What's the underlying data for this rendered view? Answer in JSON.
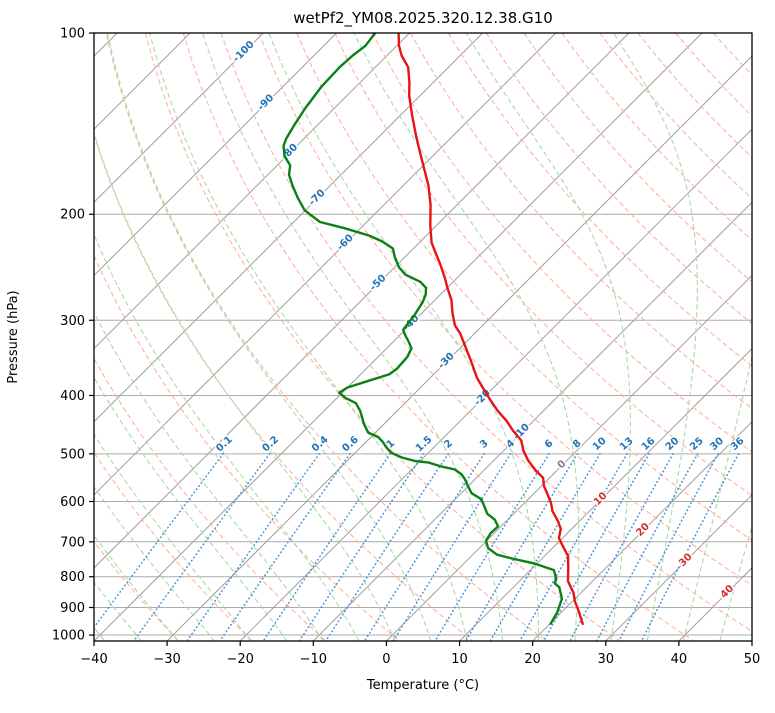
{
  "title": "wetPf2_YM08.2025.320.12.38.G10",
  "chart_data": {
    "type": "line",
    "variant": "skew-t-log-p",
    "title": "wetPf2_YM08.2025.320.12.38.G10",
    "xlabel": "Temperature (°C)",
    "ylabel": "Pressure (hPa)",
    "xlim": [
      -40,
      50
    ],
    "x_ticks": [
      -40,
      -30,
      -20,
      -10,
      0,
      10,
      20,
      30,
      40,
      50
    ],
    "p_lim": [
      100,
      1023
    ],
    "p_ticks": [
      100,
      200,
      300,
      400,
      500,
      600,
      700,
      800,
      900,
      1000
    ],
    "grid": true,
    "skew_deg": 45,
    "colors": {
      "frame": "#000000",
      "grid": "#ababab",
      "isotherm": "#9e9e9e",
      "dry_adiabat": "#ffb2a0",
      "moist_adiabat": "#abd8ab",
      "mixing_line": "#4a96d8",
      "label_blue": "#2373b5",
      "label_gray": "#7f7f7f",
      "label_red": "#d03030",
      "temperature": "#e81313",
      "dewpoint": "#0b8014"
    },
    "isotherms": {
      "t_start": -160,
      "t_end": 50,
      "step": 10,
      "labels": [
        {
          "t": -100,
          "p": 107
        },
        {
          "t": -90,
          "p": 130
        },
        {
          "t": -80,
          "p": 157
        },
        {
          "t": -70,
          "p": 187
        },
        {
          "t": -60,
          "p": 222
        },
        {
          "t": -50,
          "p": 259
        },
        {
          "t": -40,
          "p": 302
        },
        {
          "t": -30,
          "p": 349
        },
        {
          "t": -20,
          "p": 402
        },
        {
          "t": -10,
          "p": 458
        },
        {
          "t": 0,
          "p": 519
        },
        {
          "t": 10,
          "p": 592
        },
        {
          "t": 20,
          "p": 666
        },
        {
          "t": 30,
          "p": 748
        },
        {
          "t": 40,
          "p": 844
        }
      ]
    },
    "dry_adiabats": {
      "theta_start": -60,
      "theta_end": 200,
      "step": 10
    },
    "moist_adiabats": {
      "tw_start": -60,
      "tw_end": 45,
      "step": 5
    },
    "mixing_ratio": {
      "values": [
        0.1,
        0.2,
        0.4,
        0.6,
        1,
        1.5,
        2,
        3,
        4,
        6,
        8,
        10,
        13,
        16,
        20,
        25,
        30,
        36
      ],
      "labels": [
        "0.1",
        "0.2",
        "0.4",
        "0.6",
        "1",
        "1.5",
        "2",
        "3",
        "4",
        "6",
        "8",
        "10",
        "13",
        "16",
        "20",
        "25",
        "30",
        "36"
      ],
      "label_pressure": 480,
      "line_top_pressure": 500,
      "line_bottom_pressure": 1023
    },
    "series": [
      {
        "name": "temperature",
        "points": [
          [
            100,
            -81.5
          ],
          [
            105,
            -79.7
          ],
          [
            109,
            -78.0
          ],
          [
            114,
            -75.5
          ],
          [
            121,
            -73.2
          ],
          [
            127,
            -71.5
          ],
          [
            137,
            -68.4
          ],
          [
            148,
            -65.1
          ],
          [
            157,
            -62.5
          ],
          [
            166,
            -60.0
          ],
          [
            179,
            -56.6
          ],
          [
            193,
            -53.6
          ],
          [
            209,
            -50.8
          ],
          [
            223,
            -48.3
          ],
          [
            234,
            -45.9
          ],
          [
            243,
            -44.0
          ],
          [
            255,
            -41.7
          ],
          [
            266,
            -39.8
          ],
          [
            278,
            -37.7
          ],
          [
            292,
            -35.8
          ],
          [
            306,
            -33.8
          ],
          [
            316,
            -31.9
          ],
          [
            333,
            -29.3
          ],
          [
            350,
            -26.8
          ],
          [
            374,
            -23.6
          ],
          [
            388,
            -21.5
          ],
          [
            408,
            -18.6
          ],
          [
            424,
            -16.3
          ],
          [
            440,
            -13.8
          ],
          [
            458,
            -11.4
          ],
          [
            475,
            -9.0
          ],
          [
            494,
            -7.3
          ],
          [
            513,
            -5.3
          ],
          [
            533,
            -2.9
          ],
          [
            548,
            -0.9
          ],
          [
            565,
            0.3
          ],
          [
            583,
            1.9
          ],
          [
            603,
            3.6
          ],
          [
            622,
            4.9
          ],
          [
            646,
            7.0
          ],
          [
            666,
            8.5
          ],
          [
            690,
            9.5
          ],
          [
            711,
            11.1
          ],
          [
            739,
            13.2
          ],
          [
            774,
            14.9
          ],
          [
            813,
            16.6
          ],
          [
            851,
            19.0
          ],
          [
            878,
            20.3
          ],
          [
            905,
            21.8
          ],
          [
            932,
            23.2
          ],
          [
            958,
            24.5
          ]
        ]
      },
      {
        "name": "dewpoint",
        "points": [
          [
            100,
            -84.7
          ],
          [
            105,
            -84.3
          ],
          [
            109,
            -84.7
          ],
          [
            114,
            -84.9
          ],
          [
            123,
            -84.7
          ],
          [
            133,
            -84.0
          ],
          [
            142,
            -83.2
          ],
          [
            150,
            -82.4
          ],
          [
            154,
            -81.8
          ],
          [
            160,
            -80.3
          ],
          [
            166,
            -78.2
          ],
          [
            172,
            -77.1
          ],
          [
            179,
            -75.2
          ],
          [
            188,
            -72.7
          ],
          [
            197,
            -70.1
          ],
          [
            206,
            -66.4
          ],
          [
            211,
            -62.2
          ],
          [
            217,
            -57.8
          ],
          [
            222,
            -55.2
          ],
          [
            228,
            -52.8
          ],
          [
            236,
            -51.3
          ],
          [
            245,
            -49.4
          ],
          [
            252,
            -47.5
          ],
          [
            259,
            -44.5
          ],
          [
            265,
            -42.9
          ],
          [
            272,
            -42.0
          ],
          [
            280,
            -41.4
          ],
          [
            295,
            -40.7
          ],
          [
            311,
            -40.3
          ],
          [
            318,
            -39.2
          ],
          [
            325,
            -38.0
          ],
          [
            334,
            -36.6
          ],
          [
            345,
            -36.0
          ],
          [
            361,
            -35.8
          ],
          [
            369,
            -36.1
          ],
          [
            378,
            -38.0
          ],
          [
            388,
            -40.0
          ],
          [
            396,
            -40.4
          ],
          [
            404,
            -38.8
          ],
          [
            412,
            -36.7
          ],
          [
            424,
            -35.1
          ],
          [
            436,
            -33.8
          ],
          [
            445,
            -32.9
          ],
          [
            461,
            -31.0
          ],
          [
            469,
            -29.0
          ],
          [
            478,
            -27.7
          ],
          [
            487,
            -26.6
          ],
          [
            498,
            -25.1
          ],
          [
            507,
            -23.0
          ],
          [
            514,
            -20.7
          ],
          [
            517,
            -18.6
          ],
          [
            525,
            -16.3
          ],
          [
            531,
            -14.1
          ],
          [
            541,
            -12.5
          ],
          [
            551,
            -11.4
          ],
          [
            565,
            -10.1
          ],
          [
            581,
            -8.6
          ],
          [
            595,
            -6.4
          ],
          [
            609,
            -5.2
          ],
          [
            629,
            -3.6
          ],
          [
            643,
            -1.8
          ],
          [
            660,
            -0.4
          ],
          [
            677,
            -0.5
          ],
          [
            697,
            -0.1
          ],
          [
            717,
            1.2
          ],
          [
            735,
            3.3
          ],
          [
            748,
            6.3
          ],
          [
            761,
            9.7
          ],
          [
            780,
            13.2
          ],
          [
            806,
            14.7
          ],
          [
            820,
            15.1
          ],
          [
            833,
            16.3
          ],
          [
            870,
            18.2
          ],
          [
            915,
            19.4
          ],
          [
            958,
            20.1
          ]
        ]
      }
    ]
  }
}
